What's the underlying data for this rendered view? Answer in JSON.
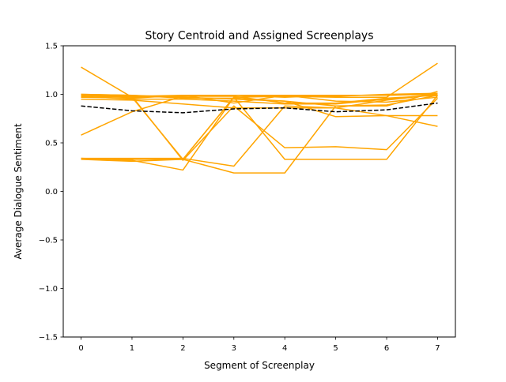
{
  "chart_data": {
    "type": "line",
    "title": "Story Centroid and Assigned Screenplays",
    "xlabel": "Segment of Screenplay",
    "ylabel": "Average Dialogue Sentiment",
    "x": [
      0,
      1,
      2,
      3,
      4,
      5,
      6,
      7
    ],
    "xlim": [
      -0.35,
      7.35
    ],
    "ylim": [
      -1.5,
      1.5
    ],
    "x_ticks": [
      0,
      1,
      2,
      3,
      4,
      5,
      6,
      7
    ],
    "x_tick_labels": [
      "0",
      "1",
      "2",
      "3",
      "4",
      "5",
      "6",
      "7"
    ],
    "y_ticks": [
      -1.5,
      -1.0,
      -0.5,
      0.0,
      0.5,
      1.0,
      1.5
    ],
    "y_tick_labels": [
      "−1.5",
      "−1.0",
      "−0.5",
      "0.0",
      "0.5",
      "1.0",
      "1.5"
    ],
    "grid": false,
    "legend": "none",
    "screenplay_color": "#ffa500",
    "centroid_color": "#000000",
    "series": [
      {
        "values": [
          1.28,
          0.97,
          0.33,
          0.97,
          0.98,
          0.97,
          0.97,
          1.32
        ]
      },
      {
        "values": [
          0.58,
          0.82,
          0.98,
          0.99,
          0.97,
          0.99,
          0.99,
          1.0
        ]
      },
      {
        "values": [
          0.34,
          0.32,
          0.22,
          0.97,
          0.99,
          0.99,
          0.99,
          1.01
        ]
      },
      {
        "values": [
          0.34,
          0.34,
          0.34,
          0.26,
          0.88,
          0.86,
          0.94,
          1.0
        ]
      },
      {
        "values": [
          0.34,
          0.33,
          0.33,
          0.19,
          0.19,
          0.88,
          0.88,
          1.03
        ]
      },
      {
        "values": [
          0.33,
          0.31,
          0.33,
          0.97,
          0.33,
          0.33,
          0.33,
          0.99
        ]
      },
      {
        "values": [
          0.97,
          0.98,
          0.32,
          0.88,
          0.45,
          0.46,
          0.43,
          0.96
        ]
      },
      {
        "values": [
          0.95,
          0.94,
          0.9,
          0.86,
          0.86,
          0.86,
          0.78,
          0.67
        ]
      },
      {
        "values": [
          1.0,
          0.99,
          0.97,
          0.95,
          0.93,
          0.88,
          0.89,
          0.99
        ]
      },
      {
        "values": [
          0.99,
          0.98,
          0.99,
          0.99,
          0.99,
          0.93,
          0.92,
          0.97
        ]
      },
      {
        "values": [
          0.97,
          0.96,
          0.99,
          0.91,
          0.99,
          0.98,
          1.0,
          1.01
        ]
      },
      {
        "values": [
          1.0,
          0.99,
          0.96,
          0.96,
          0.93,
          0.77,
          0.78,
          0.78
        ]
      },
      {
        "values": [
          0.99,
          0.97,
          0.98,
          0.98,
          0.91,
          0.91,
          0.96,
          0.99
        ]
      },
      {
        "values": [
          0.98,
          0.95,
          0.95,
          0.93,
          0.9,
          0.9,
          0.95,
          1.0
        ]
      }
    ],
    "centroid": {
      "values": [
        0.88,
        0.83,
        0.81,
        0.85,
        0.86,
        0.82,
        0.84,
        0.91
      ]
    }
  }
}
